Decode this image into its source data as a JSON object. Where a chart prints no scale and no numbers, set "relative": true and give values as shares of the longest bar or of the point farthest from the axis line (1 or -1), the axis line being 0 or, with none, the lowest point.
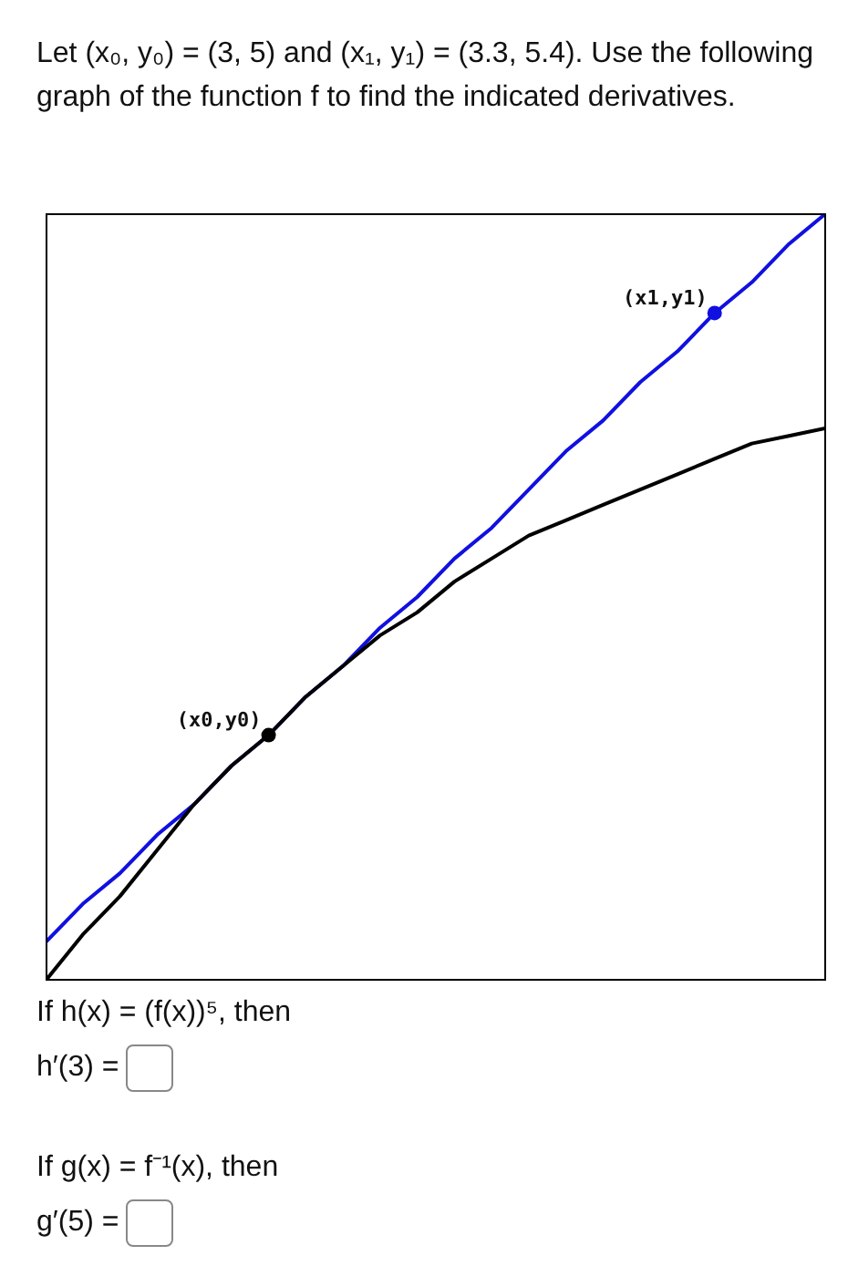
{
  "chart_data": {
    "type": "line",
    "relative": true,
    "title": "Let (x₀, y₀) = (3, 5) and (x₁, y₁) = (3.3, 5.4). Use the following graph of the function f to find the indicated derivatives.",
    "categories": [
      null,
      null,
      null,
      null,
      null,
      null,
      null,
      null,
      null,
      null,
      null,
      null,
      null,
      null,
      null,
      null,
      null,
      null,
      null,
      null,
      null,
      null
    ],
    "series": [
      {
        "color": "#000000",
        "values": [
          0,
          0.06,
          0.11,
          0.17,
          0.23,
          0.28,
          0.32,
          0.37,
          0.41,
          0.45,
          0.48,
          0.52,
          0.55,
          0.58,
          0.6,
          0.62,
          0.64,
          0.66,
          0.68,
          0.7,
          0.71,
          0.72
        ]
      },
      {
        "color": "#1010e0",
        "values": [
          0.05,
          0.1,
          0.14,
          0.19,
          0.23,
          0.28,
          0.32,
          0.37,
          0.41,
          0.46,
          0.5,
          0.55,
          0.59,
          0.64,
          0.69,
          0.73,
          0.78,
          0.82,
          0.87,
          0.91,
          0.96,
          1.0
        ]
      }
    ],
    "legend": false,
    "annotations": [
      "(x0,y0)",
      "(x1,y1)",
      "If h(x) = (f(x))⁵, then",
      "h′(3) =",
      "If g(x) = f⁻¹(x), then",
      "g′(5) ="
    ]
  }
}
